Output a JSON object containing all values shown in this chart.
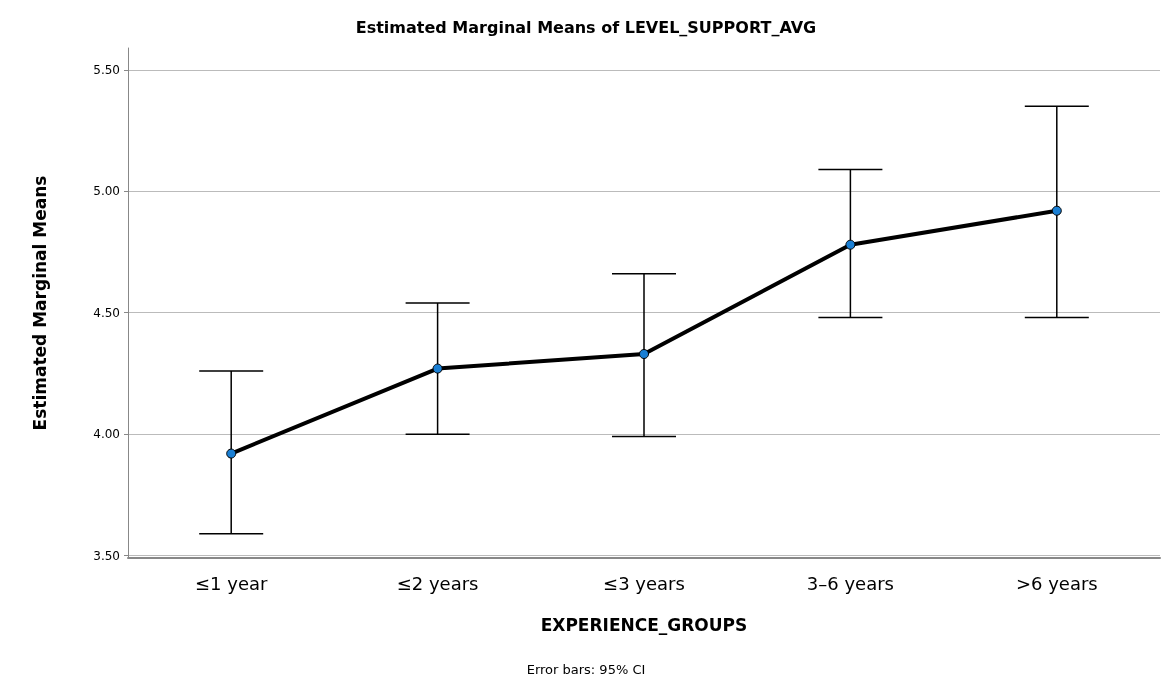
{
  "chart_data": {
    "type": "line",
    "title": "Estimated Marginal Means of LEVEL_SUPPORT_AVG",
    "xlabel": "EXPERIENCE_GROUPS",
    "ylabel": "Estimated Marginal Means",
    "annotations": [
      "Error bars: 95% CI"
    ],
    "categories": [
      "≤1 year",
      "≤2 years",
      "≤3 years",
      "3–6 years",
      ">6 years"
    ],
    "series": [
      {
        "color": "#000000",
        "values": [
          3.92,
          4.27,
          4.33,
          4.78,
          4.92
        ],
        "errors": [
          [
            3.59,
            4.26
          ],
          [
            4.0,
            4.54
          ],
          [
            3.99,
            4.66
          ],
          [
            4.48,
            5.09
          ],
          [
            4.48,
            5.35
          ]
        ]
      }
    ],
    "ylim": [
      3.49,
      5.59
    ],
    "yticks": [
      {
        "value": 3.5,
        "label": "3.50"
      },
      {
        "value": 4.0,
        "label": "4.00"
      },
      {
        "value": 4.5,
        "label": "4.50"
      },
      {
        "value": 5.0,
        "label": "5.00"
      },
      {
        "value": 5.5,
        "label": "5.50"
      }
    ],
    "grid": "y",
    "marker": "circle",
    "line_style": "solid"
  }
}
